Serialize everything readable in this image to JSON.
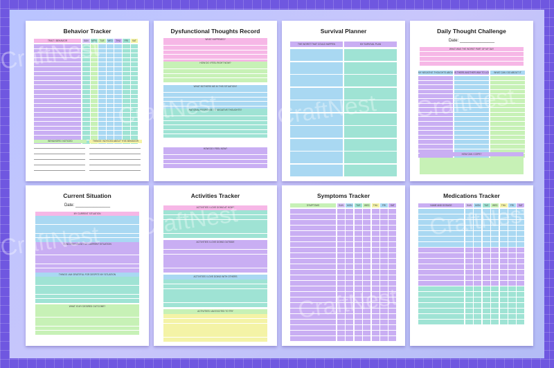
{
  "watermark": "CraftNest",
  "colors": {
    "frame": "#6f57e0",
    "pink": "#f6b7e6",
    "purple": "#c9aef3",
    "blue": "#a9d8f2",
    "teal": "#9fe3d4",
    "green": "#c7f1b6",
    "yellow": "#f4f3a6",
    "lavender": "#d7c4f7"
  },
  "pages": [
    {
      "title": "Behavior Tracker",
      "date": "",
      "labels": [
        "TRAIT / BEHAVIOR",
        "SUN",
        "MON",
        "TUE",
        "WED",
        "THU",
        "FRI",
        "SAT",
        "BEHAVIORS I NOTICED",
        "THINGS I NOTICED ABOUT THIS BEHAVIOR"
      ]
    },
    {
      "title": "Dysfunctional Thoughts Record",
      "date": "",
      "labels": [
        "WHAT HAPPENED?",
        "HOW DO I FEEL RIGHT NOW?",
        "WHAT BOTHERS ME IN THIS SITUATION?",
        "RATIONAL RESPONSE TO NEGATIVE THOUGHTS?",
        "HOW DO I FEEL NOW?"
      ]
    },
    {
      "title": "Survival Planner",
      "date": "",
      "labels": [
        "THE WORST THAT COULD HAPPEN",
        "MY SURVIVAL PLAN"
      ]
    },
    {
      "title": "Daily Thought Challenge",
      "date": "Date: _______________",
      "labels": [
        "WHAT WAS THE WORST PART OF MY DAY",
        "MY NEGATIVE THOUGHTS ABOUT IT",
        "IS THERE ANOTHER WAY TO LOOK AT IT",
        "WHAT CAN I DO ABOUT IT",
        "HOW CAN I COPE?"
      ]
    },
    {
      "title": "Current Situation",
      "date": "Date: _______________",
      "labels": [
        "MY CURRENT SITUATION",
        "CONCERNS ABOUT MY CURRENT SITUATION",
        "THINGS I AM GRATEFUL FOR DESPITE MY SITUATION",
        "WHAT IS MY DESIRED OUTCOME?"
      ]
    },
    {
      "title": "Activities Tracker",
      "date": "",
      "labels": [
        "ACTIVITIES I LOVE DOING AT HOME",
        "ACTIVITIES I LOVE DOING OUTSIDE",
        "ACTIVITIES I LOVE DOING WITH OTHERS",
        "ACTIVITIES I AM EXCITED TO TRY"
      ]
    },
    {
      "title": "Symptoms Tracker",
      "date": "",
      "labels": [
        "SYMPTOMS",
        "SUN",
        "MON",
        "TUE",
        "WED",
        "THU",
        "FRI",
        "SAT"
      ]
    },
    {
      "title": "Medications Tracker",
      "date": "",
      "labels": [
        "NAME AND DOSAGE",
        "SUN",
        "MON",
        "TUE",
        "WED",
        "THU",
        "FRI",
        "SAT"
      ]
    }
  ]
}
